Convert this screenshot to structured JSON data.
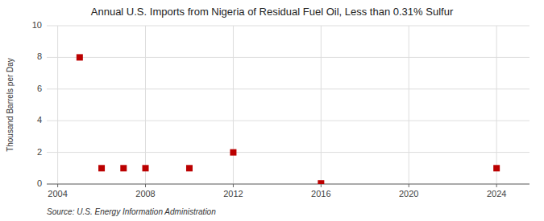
{
  "chart_data": {
    "type": "scatter",
    "title": "Annual U.S. Imports from Nigeria of Residual Fuel Oil, Less than 0.31% Sulfur",
    "ylabel": "Thousand Barrels per Day",
    "source": "Source: U.S. Energy Information Administration",
    "x": [
      2005,
      2006,
      2007,
      2008,
      2010,
      2012,
      2016,
      2024
    ],
    "values": [
      8,
      1,
      1,
      1,
      1,
      2,
      0.04,
      1
    ],
    "color": "#bb0000",
    "marker": "square",
    "xlim": [
      2003.5,
      2025.5
    ],
    "ylim": [
      0,
      10
    ],
    "xticks": [
      2004,
      2008,
      2012,
      2016,
      2020,
      2024
    ],
    "yticks": [
      0,
      2,
      4,
      6,
      8,
      10
    ],
    "grid": true
  }
}
